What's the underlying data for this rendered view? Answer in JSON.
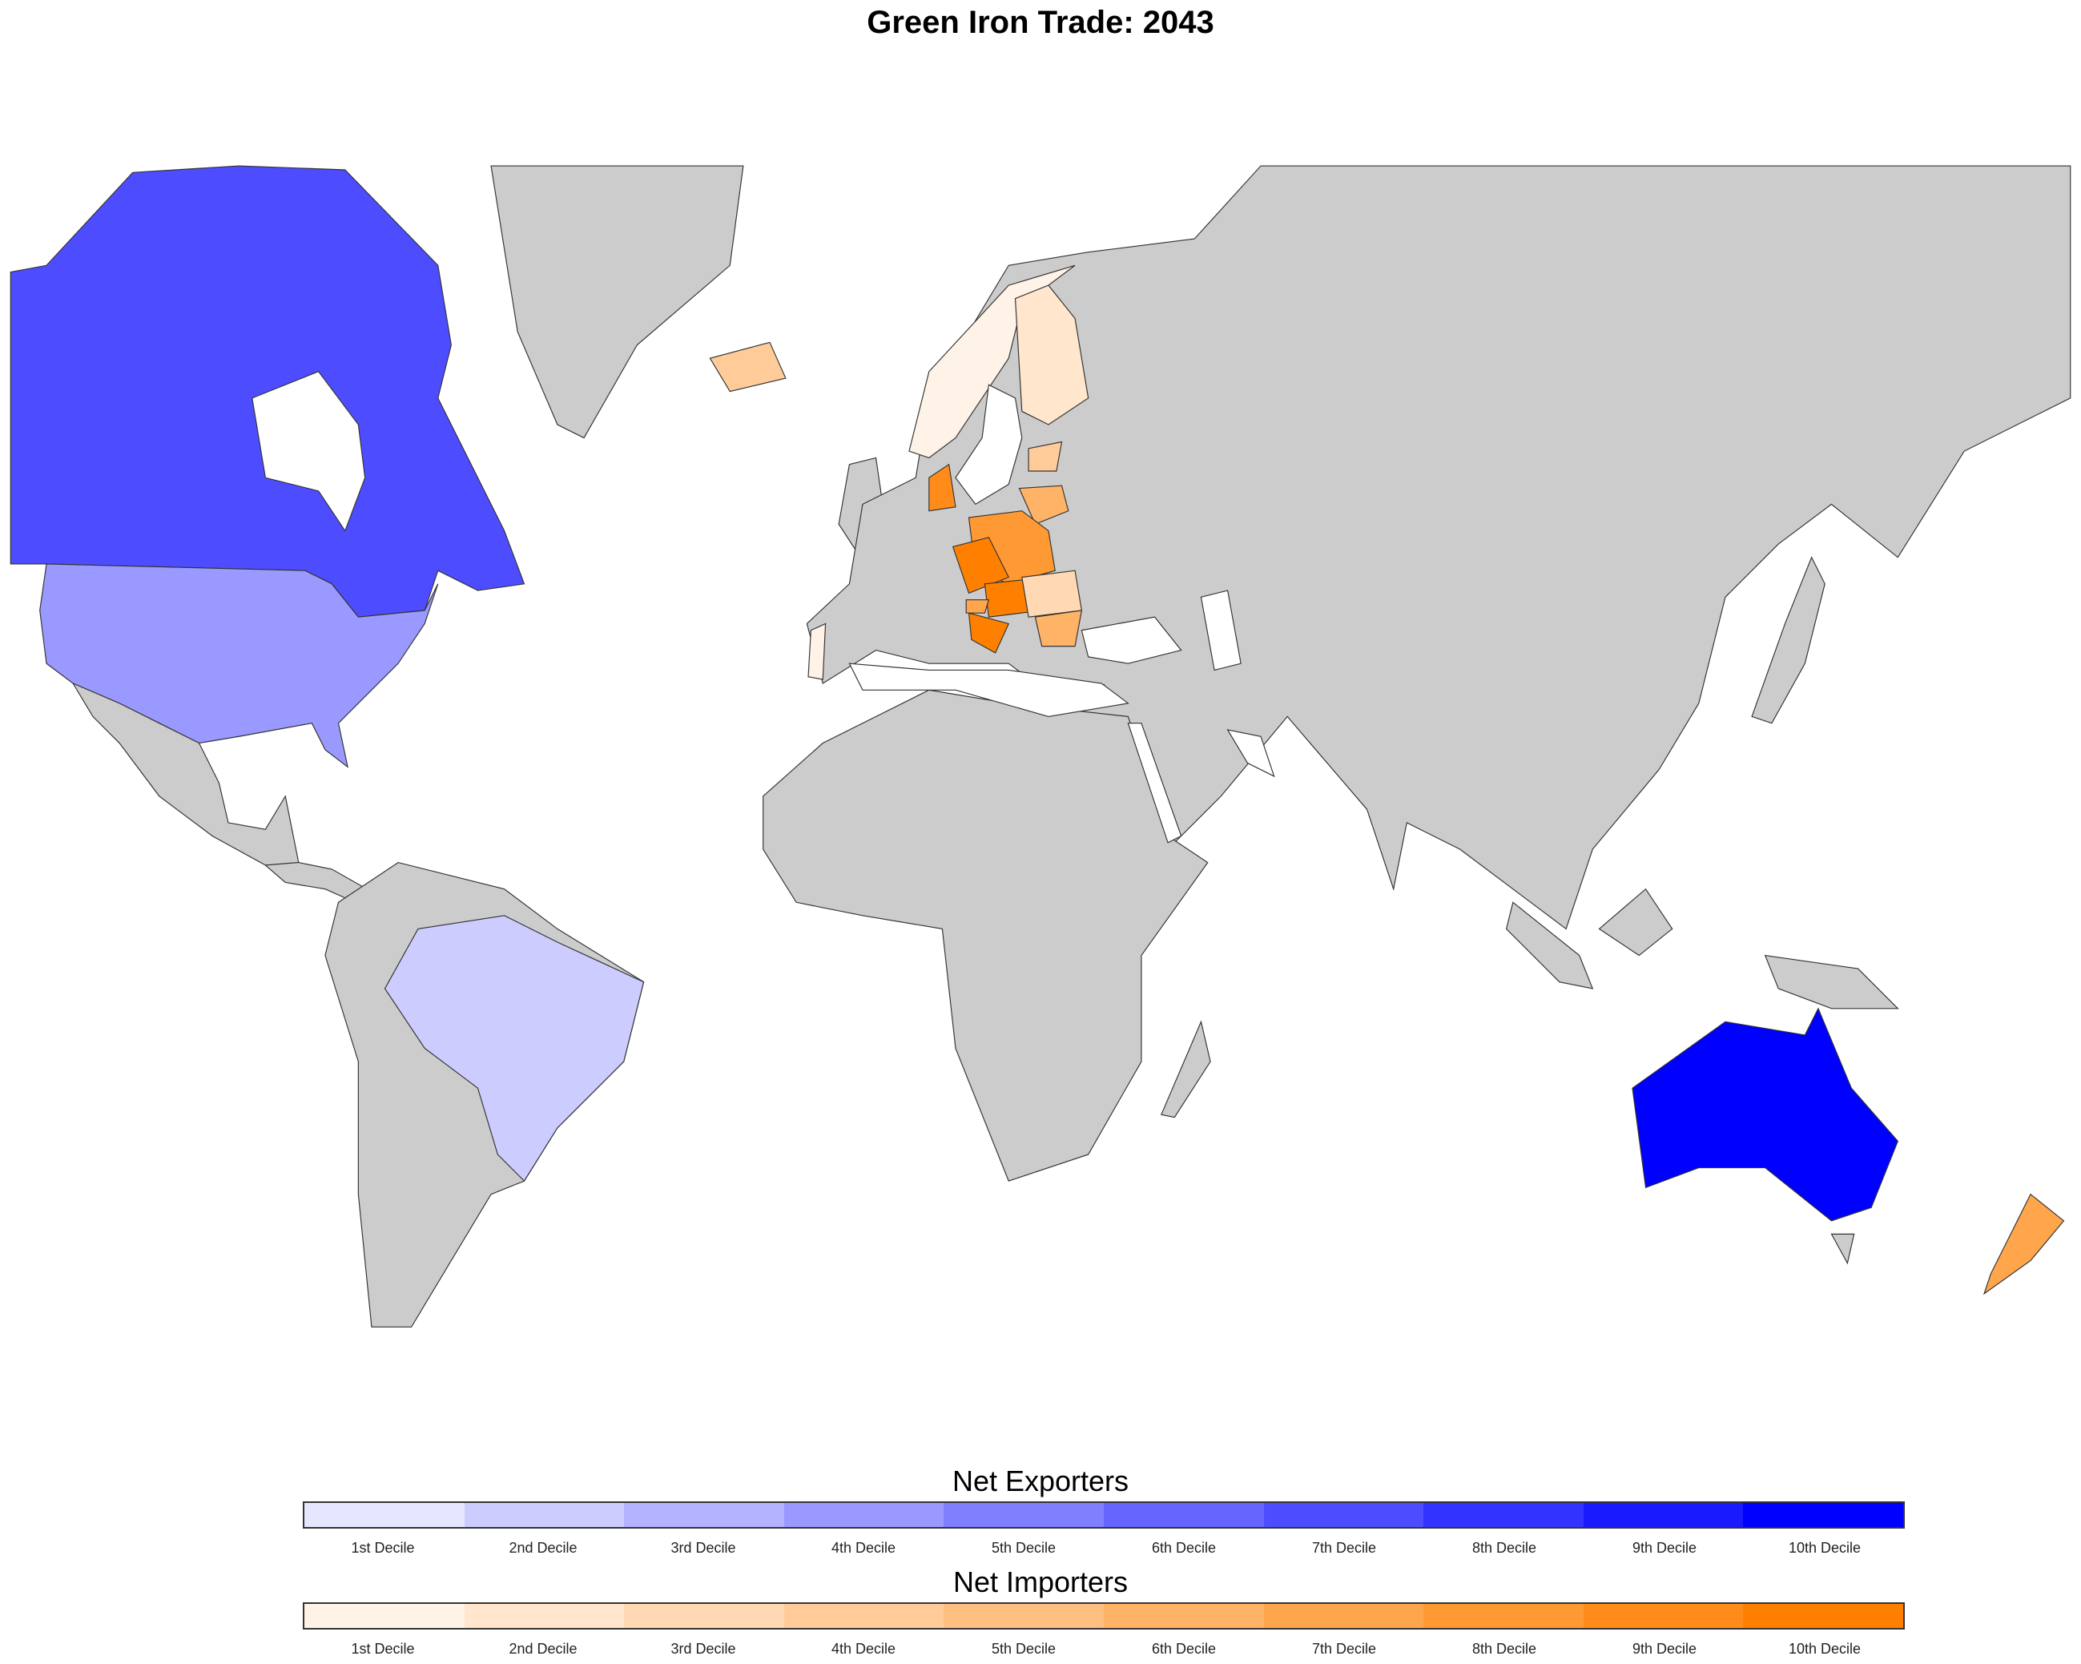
{
  "title": "Green Iron Trade: 2043",
  "land_color": "#cccccc",
  "legend": {
    "exporters": {
      "title": "Net Exporters",
      "colors": [
        "#e6e6ff",
        "#ccccff",
        "#b3b3ff",
        "#9999ff",
        "#8080ff",
        "#6666ff",
        "#4d4dff",
        "#3333ff",
        "#1a1aff",
        "#0000ff"
      ]
    },
    "importers": {
      "title": "Net Importers",
      "colors": [
        "#fff2e6",
        "#ffe6cc",
        "#ffd9b3",
        "#ffcc99",
        "#ffbf80",
        "#ffb366",
        "#ffa64d",
        "#ff9933",
        "#ff8c1a",
        "#ff8000"
      ]
    },
    "labels": [
      "1st Decile",
      "2nd Decile",
      "3rd Decile",
      "4th Decile",
      "5th Decile",
      "6th Decile",
      "7th Decile",
      "8th Decile",
      "9th Decile",
      "10th Decile"
    ]
  },
  "choropleth": {
    "AUS": {
      "group": "exporters",
      "decile": 10
    },
    "CAN": {
      "group": "exporters",
      "decile": 7
    },
    "USA": {
      "group": "exporters",
      "decile": 4
    },
    "BRA": {
      "group": "exporters",
      "decile": 2
    },
    "NOR": {
      "group": "importers",
      "decile": 1
    },
    "PRT": {
      "group": "importers",
      "decile": 1
    },
    "FIN": {
      "group": "importers",
      "decile": 2
    },
    "ROU": {
      "group": "importers",
      "decile": 3
    },
    "EST": {
      "group": "importers",
      "decile": 4
    },
    "ISL": {
      "group": "importers",
      "decile": 4
    },
    "LTU": {
      "group": "importers",
      "decile": 6
    },
    "BGR": {
      "group": "importers",
      "decile": 6
    },
    "CYP": {
      "group": "importers",
      "decile": 6
    },
    "NZL": {
      "group": "importers",
      "decile": 7
    },
    "SVN": {
      "group": "importers",
      "decile": 7
    },
    "POL": {
      "group": "importers",
      "decile": 8
    },
    "DNK": {
      "group": "importers",
      "decile": 9
    },
    "CZE": {
      "group": "importers",
      "decile": 10
    },
    "SVK": {
      "group": "importers",
      "decile": 10
    },
    "HRV": {
      "group": "importers",
      "decile": 10
    }
  }
}
